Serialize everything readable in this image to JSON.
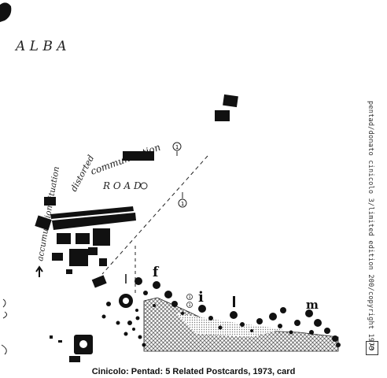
{
  "caption": "Cinicolo: Pentad: 5 Related Postcards, 1973, card",
  "side_text": "pentad/donato cinicolo 3/limited edition 200/copyright 1973",
  "card_number": "5",
  "handwriting": {
    "alba": "A L B A",
    "road": "R O A D",
    "communication": "communication",
    "distorted": "distorted",
    "accumulation_situation": "accumulation situation"
  },
  "letters": {
    "f": "f",
    "i": "i",
    "m": "m",
    "o": "o"
  },
  "circled_numbers": [
    "1",
    "1",
    "1",
    "1"
  ],
  "colors": {
    "ink": "#111111",
    "paper": "#ffffff",
    "text": "#333333"
  }
}
